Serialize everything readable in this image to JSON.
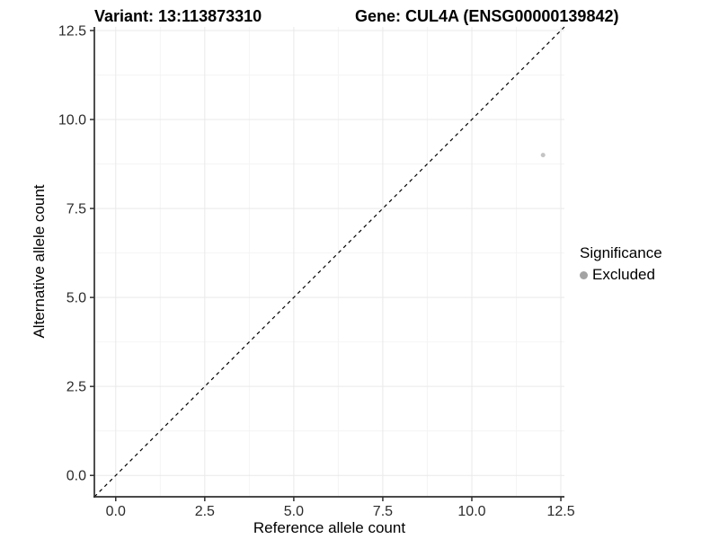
{
  "chart_data": {
    "type": "scatter",
    "title_variant": "Variant: 13:113873310",
    "title_gene": "Gene: CUL4A (ENSG00000139842)",
    "xlabel": "Reference allele count",
    "ylabel": "Alternative allele count",
    "xlim": [
      -0.6,
      12.6
    ],
    "ylim": [
      -0.6,
      12.6
    ],
    "x_ticks": [
      0,
      2.5,
      5,
      7.5,
      10,
      12.5
    ],
    "x_tick_labels": [
      "0.0",
      "2.5",
      "5.0",
      "7.5",
      "10.0",
      "12.5"
    ],
    "y_ticks": [
      0,
      2.5,
      5,
      7.5,
      10,
      12.5
    ],
    "y_tick_labels": [
      "0.0",
      "2.5",
      "5.0",
      "7.5",
      "10.0",
      "12.5"
    ],
    "minor_ticks": [
      1.25,
      3.75,
      6.25,
      8.75,
      11.25
    ],
    "grid": "major+minor",
    "legend_position": "right",
    "legend": {
      "title": "Significance",
      "items": [
        {
          "label": "Excluded",
          "color": "#a3a3a3"
        }
      ]
    },
    "series": [
      {
        "name": "Excluded",
        "color": "#c4c4c4",
        "marker": "circle",
        "marker_radius": 2.5,
        "points": [
          {
            "x": 12,
            "y": 9
          }
        ]
      }
    ],
    "reference_line": {
      "label": "identity",
      "slope": 1,
      "intercept": 0,
      "style": "dashed",
      "color": "#000000"
    },
    "style": {
      "background": "#ffffff",
      "grid_major_color": "#e9e9e9",
      "grid_minor_color": "#f4f4f4",
      "axis_line_color": "#2f2f2f",
      "tick_label_color": "#2b2b2b",
      "tick_label_size": 16
    }
  }
}
